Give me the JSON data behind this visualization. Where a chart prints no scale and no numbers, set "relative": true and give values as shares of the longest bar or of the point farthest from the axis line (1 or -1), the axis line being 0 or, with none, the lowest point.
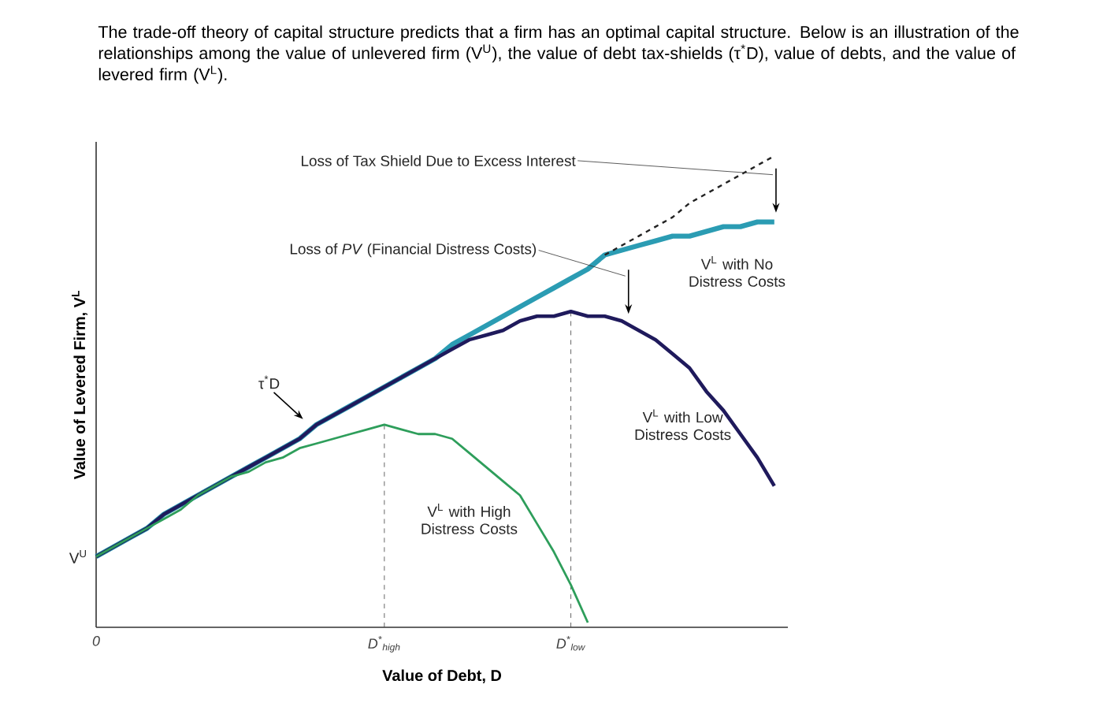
{
  "chart_data": {
    "type": "line",
    "relative": true,
    "title": "The trade-off theory of capital structure predicts that a firm has an optimal capital structure. Below is an illustration of the relationships among the value of unlevered firm (V$^{U}$), the value of debt tax-shields (τ$^{*}$D), value of debts, and the value of levered firm (V$^{L}$).",
    "xlabel": "Value of Debt, D",
    "ylabel": "Value of Levered Firm, V$^{L}$",
    "categories": [
      "0",
      null,
      null,
      null,
      null,
      null,
      null,
      null,
      null,
      null,
      null,
      null,
      null,
      null,
      null,
      null,
      null,
      "D$^{*}$$_{high}$",
      null,
      null,
      null,
      null,
      null,
      null,
      null,
      null,
      null,
      null,
      "D$^{*}$$_{low}$",
      null,
      null,
      null,
      null,
      null,
      null,
      null,
      null,
      null,
      null,
      null,
      null
    ],
    "ref_lines": [
      {
        "axis": "x",
        "value": "D$^{*}$$_{high}$",
        "line_style": "dashed"
      },
      {
        "axis": "x",
        "value": "D$^{*}$$_{low}$",
        "line_style": "dashed"
      }
    ],
    "series": [
      {
        "name": "V$^{L}$ with No Distress Costs",
        "color": "#2b9cb3",
        "line_style": "solid",
        "values": [
          0.15,
          0.17,
          0.19,
          0.21,
          0.24,
          0.26,
          0.28,
          0.3,
          0.32,
          0.34,
          0.36,
          0.38,
          0.4,
          0.43,
          0.45,
          0.47,
          0.49,
          0.51,
          0.53,
          0.55,
          0.57,
          0.6,
          0.62,
          0.64,
          0.66,
          0.68,
          0.7,
          0.72,
          0.74,
          0.76,
          0.79,
          0.8,
          0.81,
          0.82,
          0.83,
          0.83,
          0.84,
          0.85,
          0.85,
          0.86,
          0.86
        ]
      },
      {
        "color": "#222222",
        "line_style": "dashed",
        "values": [
          null,
          null,
          null,
          null,
          null,
          null,
          null,
          null,
          null,
          null,
          null,
          null,
          null,
          null,
          null,
          null,
          null,
          null,
          null,
          null,
          null,
          null,
          null,
          null,
          null,
          null,
          null,
          null,
          null,
          null,
          0.79,
          0.81,
          0.83,
          0.85,
          0.87,
          0.9,
          0.92,
          0.94,
          0.96,
          0.98,
          1.0
        ]
      },
      {
        "name": "V$^{L}$ with Low Distress Costs",
        "color": "#1f1a5c",
        "line_style": "solid",
        "values": [
          0.15,
          0.17,
          0.19,
          0.21,
          0.24,
          0.26,
          0.28,
          0.3,
          0.32,
          0.34,
          0.36,
          0.38,
          0.4,
          0.43,
          0.45,
          0.47,
          0.49,
          0.51,
          0.53,
          0.55,
          0.57,
          0.59,
          0.61,
          0.62,
          0.63,
          0.65,
          0.66,
          0.66,
          0.67,
          0.66,
          0.66,
          0.65,
          0.63,
          0.61,
          0.58,
          0.55,
          0.5,
          0.46,
          0.41,
          0.36,
          0.3
        ]
      },
      {
        "name": "V$^{L}$ with High Distress Costs",
        "color": "#2e9e5b",
        "line_style": "solid",
        "values": [
          0.15,
          0.17,
          0.19,
          0.21,
          0.23,
          0.25,
          0.28,
          0.3,
          0.32,
          0.33,
          0.35,
          0.36,
          0.38,
          0.39,
          0.4,
          0.41,
          0.42,
          0.43,
          0.42,
          0.41,
          0.41,
          0.4,
          0.37,
          0.34,
          0.31,
          0.28,
          0.22,
          0.16,
          0.09,
          0.01,
          null,
          null,
          null,
          null,
          null,
          null,
          null,
          null,
          null,
          null,
          null
        ]
      }
    ],
    "annotations": [
      "V$^{U}$",
      "Loss of Tax Shield Due to Excess Interest",
      "Loss of *PV* (Financial Distress Costs)",
      "τ$^{*}$D"
    ]
  }
}
